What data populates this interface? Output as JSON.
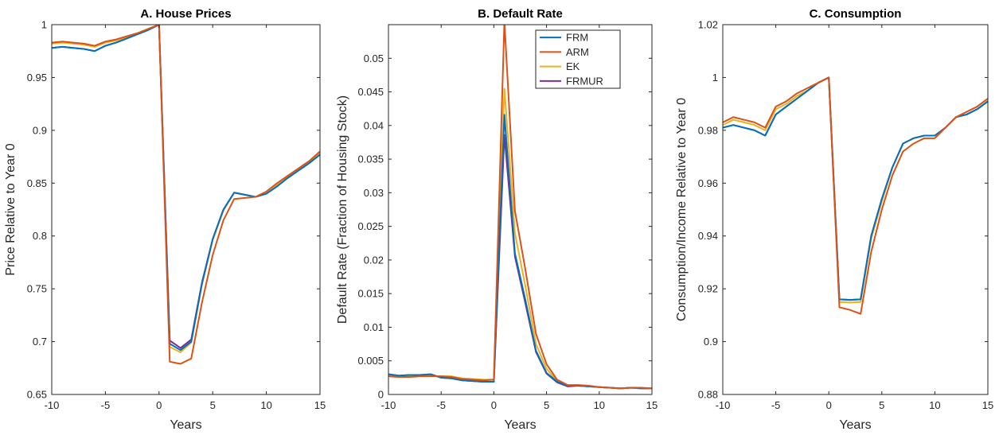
{
  "colors": {
    "FRM": "#0072BD",
    "ARM": "#D95319",
    "EK": "#EDB120",
    "FRMUR": "#7E2F8E"
  },
  "chart_data": [
    {
      "type": "line",
      "title": "A. House Prices",
      "xlabel": "Years",
      "ylabel": "Price Relative to Year 0",
      "xlim": [
        -10,
        15
      ],
      "ylim": [
        0.65,
        1
      ],
      "xticks": [
        -10,
        -5,
        0,
        5,
        10,
        15
      ],
      "yticks": [
        0.65,
        0.7,
        0.75,
        0.8,
        0.85,
        0.9,
        0.95,
        1
      ],
      "ytick_labels": [
        "0.65",
        "0.7",
        "0.75",
        "0.8",
        "0.85",
        "0.9",
        "0.95",
        "1"
      ],
      "grid": false,
      "legend": null,
      "x": [
        -10,
        -9,
        -8,
        -7,
        -6,
        -5,
        -4,
        -3,
        -2,
        -1,
        0,
        1,
        2,
        3,
        4,
        5,
        6,
        7,
        8,
        9,
        10,
        11,
        12,
        13,
        14,
        15
      ],
      "series": [
        {
          "name": "FRM",
          "values": [
            0.978,
            0.979,
            0.978,
            0.977,
            0.975,
            0.98,
            0.983,
            0.987,
            0.991,
            0.995,
            1.0,
            0.698,
            0.692,
            0.7,
            0.755,
            0.797,
            0.825,
            0.841,
            0.839,
            0.837,
            0.84,
            0.847,
            0.855,
            0.862,
            0.869,
            0.877
          ]
        },
        {
          "name": "ARM",
          "values": [
            0.983,
            0.984,
            0.983,
            0.982,
            0.98,
            0.984,
            0.986,
            0.989,
            0.992,
            0.996,
            1.0,
            0.681,
            0.679,
            0.684,
            0.737,
            0.782,
            0.815,
            0.835,
            0.836,
            0.837,
            0.842,
            0.85,
            0.857,
            0.864,
            0.871,
            0.88
          ]
        },
        {
          "name": "EK",
          "values": [
            0.982,
            0.983,
            0.982,
            0.981,
            0.979,
            0.983,
            0.985,
            0.988,
            0.992,
            0.996,
            1.0,
            0.695,
            0.69,
            0.699,
            0.754,
            0.796,
            0.824,
            0.841,
            0.839,
            0.837,
            0.84,
            0.848,
            0.856,
            0.863,
            0.87,
            0.878
          ]
        },
        {
          "name": "FRMUR",
          "values": [
            0.978,
            0.979,
            0.978,
            0.977,
            0.975,
            0.98,
            0.983,
            0.987,
            0.991,
            0.995,
            1.0,
            0.701,
            0.694,
            0.702,
            0.756,
            0.797,
            0.825,
            0.841,
            0.839,
            0.837,
            0.84,
            0.847,
            0.855,
            0.862,
            0.869,
            0.877
          ]
        }
      ]
    },
    {
      "type": "line",
      "title": "B. Default Rate",
      "xlabel": "Years",
      "ylabel": "Default Rate (Fraction of Housing Stock)",
      "xlim": [
        -10,
        15
      ],
      "ylim": [
        0,
        0.055
      ],
      "xticks": [
        -10,
        -5,
        0,
        5,
        10,
        15
      ],
      "yticks": [
        0,
        0.005,
        0.01,
        0.015,
        0.02,
        0.025,
        0.03,
        0.035,
        0.04,
        0.045,
        0.05
      ],
      "ytick_labels": [
        "0",
        "0.005",
        "0.01",
        "0.015",
        "0.02",
        "0.025",
        "0.03",
        "0.035",
        "0.04",
        "0.045",
        "0.05"
      ],
      "grid": false,
      "legend": "top-right",
      "x": [
        -10,
        -9,
        -8,
        -7,
        -6,
        -5,
        -4,
        -3,
        -2,
        -1,
        0,
        1,
        2,
        3,
        4,
        5,
        6,
        7,
        8,
        9,
        10,
        11,
        12,
        13,
        14,
        15
      ],
      "series": [
        {
          "name": "FRM",
          "values": [
            0.003,
            0.0028,
            0.0029,
            0.0029,
            0.003,
            0.0025,
            0.0024,
            0.0021,
            0.002,
            0.0019,
            0.0019,
            0.0416,
            0.021,
            0.014,
            0.0065,
            0.0032,
            0.0019,
            0.0013,
            0.0013,
            0.0012,
            0.0011,
            0.001,
            0.0009,
            0.001,
            0.0009,
            0.0009
          ]
        },
        {
          "name": "ARM",
          "values": [
            0.0027,
            0.0026,
            0.0026,
            0.0027,
            0.0027,
            0.0027,
            0.0026,
            0.0023,
            0.0022,
            0.0021,
            0.0022,
            0.0555,
            0.0273,
            0.0185,
            0.009,
            0.0045,
            0.0022,
            0.0014,
            0.0014,
            0.0013,
            0.0011,
            0.001,
            0.0009,
            0.001,
            0.001,
            0.0009
          ]
        },
        {
          "name": "EK",
          "values": [
            0.0027,
            0.0026,
            0.0027,
            0.0027,
            0.0027,
            0.0027,
            0.0027,
            0.0024,
            0.0023,
            0.0022,
            0.0022,
            0.0455,
            0.024,
            0.016,
            0.0075,
            0.0038,
            0.002,
            0.0013,
            0.0013,
            0.0012,
            0.0011,
            0.001,
            0.0009,
            0.001,
            0.0009,
            0.0009
          ]
        },
        {
          "name": "FRMUR",
          "values": [
            0.003,
            0.0028,
            0.0029,
            0.0029,
            0.003,
            0.0025,
            0.0024,
            0.0021,
            0.002,
            0.0019,
            0.0019,
            0.0386,
            0.0205,
            0.0135,
            0.0063,
            0.0031,
            0.0018,
            0.0012,
            0.0013,
            0.0012,
            0.0011,
            0.001,
            0.0009,
            0.001,
            0.0009,
            0.0009
          ]
        }
      ]
    },
    {
      "type": "line",
      "title": "C. Consumption",
      "xlabel": "Years",
      "ylabel": "Consumption/Income Relative to Year 0",
      "xlim": [
        -10,
        15
      ],
      "ylim": [
        0.88,
        1.02
      ],
      "xticks": [
        -10,
        -5,
        0,
        5,
        10,
        15
      ],
      "yticks": [
        0.88,
        0.9,
        0.92,
        0.94,
        0.96,
        0.98,
        1,
        1.02
      ],
      "ytick_labels": [
        "0.88",
        "0.9",
        "0.92",
        "0.94",
        "0.96",
        "0.98",
        "1",
        "1.02"
      ],
      "grid": false,
      "legend": null,
      "x": [
        -10,
        -9,
        -8,
        -7,
        -6,
        -5,
        -4,
        -3,
        -2,
        -1,
        0,
        1,
        2,
        3,
        4,
        5,
        6,
        7,
        8,
        9,
        10,
        11,
        12,
        13,
        14,
        15
      ],
      "series": [
        {
          "name": "FRM",
          "values": [
            0.981,
            0.982,
            0.981,
            0.98,
            0.978,
            0.986,
            0.989,
            0.992,
            0.995,
            0.998,
            1.0,
            0.916,
            0.9158,
            0.916,
            0.94,
            0.954,
            0.966,
            0.975,
            0.977,
            0.978,
            0.978,
            0.981,
            0.985,
            0.986,
            0.988,
            0.991
          ]
        },
        {
          "name": "ARM",
          "values": [
            0.983,
            0.985,
            0.984,
            0.983,
            0.981,
            0.989,
            0.991,
            0.994,
            0.996,
            0.998,
            1.0,
            0.913,
            0.912,
            0.9105,
            0.934,
            0.95,
            0.963,
            0.972,
            0.975,
            0.977,
            0.977,
            0.981,
            0.985,
            0.987,
            0.989,
            0.992
          ]
        },
        {
          "name": "EK",
          "values": [
            0.982,
            0.984,
            0.983,
            0.982,
            0.98,
            0.988,
            0.99,
            0.993,
            0.995,
            0.998,
            1.0,
            0.915,
            0.9148,
            0.915,
            0.939,
            0.953,
            0.966,
            0.975,
            0.977,
            0.978,
            0.978,
            0.981,
            0.985,
            0.987,
            0.989,
            0.992
          ]
        },
        {
          "name": "FRMUR",
          "values": [
            0.981,
            0.982,
            0.981,
            0.98,
            0.978,
            0.986,
            0.989,
            0.992,
            0.995,
            0.998,
            1.0,
            0.916,
            0.9158,
            0.916,
            0.94,
            0.954,
            0.966,
            0.975,
            0.977,
            0.978,
            0.978,
            0.981,
            0.985,
            0.986,
            0.988,
            0.991
          ]
        }
      ]
    }
  ]
}
